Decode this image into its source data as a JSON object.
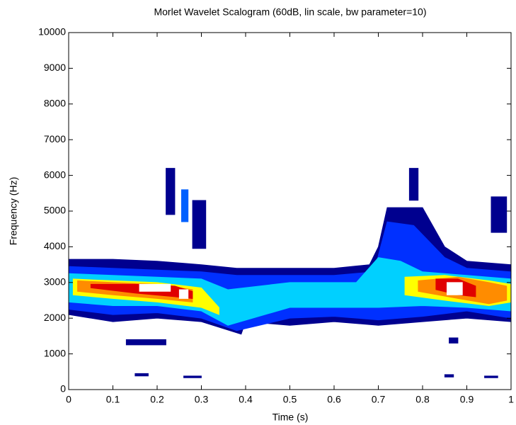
{
  "chart_data": {
    "type": "contour",
    "title": "Morlet Wavelet Scalogram (60dB, lin scale, bw parameter=10)",
    "xlabel": "Time (s)",
    "ylabel": "Frequency (Hz)",
    "xlim": [
      0,
      1
    ],
    "ylim": [
      0,
      10000
    ],
    "xticks": [
      0,
      0.1,
      0.2,
      0.3,
      0.4,
      0.5,
      0.6,
      0.7,
      0.8,
      0.9,
      1
    ],
    "yticks": [
      0,
      1000,
      2000,
      3000,
      4000,
      5000,
      6000,
      7000,
      8000,
      9000,
      10000
    ],
    "regions": [
      {
        "color": "#00008f",
        "x": [
          0,
          0.1,
          0.2,
          0.3,
          0.38,
          0.4,
          0.5,
          0.6,
          0.68,
          0.7,
          0.72,
          0.8,
          0.85,
          0.9,
          1,
          1,
          0.9,
          0.8,
          0.7,
          0.6,
          0.5,
          0.4,
          0.39,
          0.3,
          0.2,
          0.1,
          0
        ],
        "y": [
          3650,
          3650,
          3600,
          3500,
          3400,
          3400,
          3400,
          3400,
          3500,
          4000,
          5100,
          5100,
          4000,
          3600,
          3500,
          1900,
          2000,
          1900,
          1800,
          1900,
          1800,
          1900,
          1550,
          1900,
          2000,
          1900,
          2100
        ]
      },
      {
        "color": "#0030ff",
        "x": [
          0,
          0.1,
          0.2,
          0.3,
          0.38,
          0.5,
          0.6,
          0.69,
          0.72,
          0.78,
          0.85,
          0.9,
          1,
          1,
          0.9,
          0.8,
          0.7,
          0.6,
          0.5,
          0.38,
          0.3,
          0.2,
          0.1,
          0
        ],
        "y": [
          3450,
          3400,
          3350,
          3300,
          3200,
          3200,
          3200,
          3300,
          4700,
          4600,
          3700,
          3400,
          3300,
          2000,
          2200,
          2050,
          1950,
          2050,
          2000,
          1650,
          2000,
          2150,
          2100,
          2250
        ]
      },
      {
        "color": "#00d0ff",
        "x": [
          0,
          0.1,
          0.2,
          0.3,
          0.36,
          0.5,
          0.65,
          0.7,
          0.75,
          0.8,
          0.9,
          1,
          1,
          0.9,
          0.8,
          0.7,
          0.6,
          0.5,
          0.36,
          0.3,
          0.2,
          0.1,
          0
        ],
        "y": [
          3250,
          3200,
          3150,
          3100,
          2800,
          3000,
          3000,
          3700,
          3600,
          3300,
          3200,
          3100,
          2200,
          2300,
          2350,
          2300,
          2300,
          2300,
          1800,
          2200,
          2350,
          2350,
          2450
        ]
      },
      {
        "color": "#ffff00",
        "x": [
          0.01,
          0.1,
          0.2,
          0.3,
          0.34,
          0.34,
          0.3,
          0.2,
          0.1,
          0.01
        ],
        "y": [
          3100,
          3050,
          3000,
          2850,
          2300,
          2100,
          2300,
          2450,
          2550,
          2650
        ]
      },
      {
        "color": "#ffff00",
        "x": [
          0.76,
          0.85,
          0.95,
          1,
          1,
          0.95,
          0.85,
          0.76
        ],
        "y": [
          3150,
          3200,
          3050,
          2950,
          2450,
          2350,
          2500,
          2650
        ]
      },
      {
        "color": "#ff8c00",
        "x": [
          0.02,
          0.1,
          0.2,
          0.28,
          0.28,
          0.2,
          0.1,
          0.02
        ],
        "y": [
          3050,
          3000,
          2950,
          2800,
          2450,
          2550,
          2650,
          2750
        ]
      },
      {
        "color": "#ff8c00",
        "x": [
          0.79,
          0.88,
          0.95,
          0.99,
          0.99,
          0.95,
          0.88,
          0.79
        ],
        "y": [
          3050,
          3150,
          3000,
          2900,
          2500,
          2400,
          2550,
          2750
        ]
      },
      {
        "color": "#e00000",
        "x": [
          0.05,
          0.15,
          0.24,
          0.28,
          0.28,
          0.24,
          0.15,
          0.05
        ],
        "y": [
          2950,
          2950,
          2900,
          2750,
          2550,
          2600,
          2700,
          2850
        ]
      },
      {
        "color": "#e00000",
        "x": [
          0.83,
          0.88,
          0.92,
          0.92,
          0.88,
          0.83
        ],
        "y": [
          3100,
          3100,
          2900,
          2600,
          2650,
          2800
        ]
      },
      {
        "color": "#ffffff",
        "x": [
          0.16,
          0.23,
          0.23,
          0.16
        ],
        "y": [
          2950,
          2950,
          2750,
          2750
        ]
      },
      {
        "color": "#ffffff",
        "x": [
          0.855,
          0.89,
          0.89,
          0.855
        ],
        "y": [
          3000,
          3000,
          2650,
          2650
        ]
      },
      {
        "color": "#ffffff",
        "x": [
          0.25,
          0.27,
          0.27,
          0.25
        ],
        "y": [
          2800,
          2800,
          2550,
          2550
        ]
      },
      {
        "color": "#00008f",
        "x": [
          0.22,
          0.24,
          0.24,
          0.22
        ],
        "y": [
          6200,
          6200,
          4900,
          4900
        ]
      },
      {
        "color": "#00008f",
        "x": [
          0.28,
          0.31,
          0.31,
          0.28
        ],
        "y": [
          5300,
          5300,
          3950,
          3950
        ]
      },
      {
        "color": "#0060ff",
        "x": [
          0.255,
          0.27,
          0.27,
          0.255
        ],
        "y": [
          5600,
          5600,
          4700,
          4700
        ]
      },
      {
        "color": "#00008f",
        "x": [
          0.77,
          0.79,
          0.79,
          0.77
        ],
        "y": [
          6200,
          6200,
          5300,
          5300
        ]
      },
      {
        "color": "#00008f",
        "x": [
          0.955,
          0.99,
          0.99,
          0.955
        ],
        "y": [
          5400,
          5400,
          4400,
          4400
        ]
      },
      {
        "color": "#00008f",
        "x": [
          0.13,
          0.22,
          0.22,
          0.13
        ],
        "y": [
          1400,
          1400,
          1250,
          1250
        ]
      },
      {
        "color": "#00008f",
        "x": [
          0.86,
          0.88,
          0.88,
          0.86
        ],
        "y": [
          1450,
          1450,
          1300,
          1300
        ]
      },
      {
        "color": "#00008f",
        "x": [
          0.15,
          0.18,
          0.18,
          0.15
        ],
        "y": [
          450,
          450,
          380,
          380
        ]
      },
      {
        "color": "#00008f",
        "x": [
          0.85,
          0.87,
          0.87,
          0.85
        ],
        "y": [
          420,
          420,
          350,
          350
        ]
      },
      {
        "color": "#00008f",
        "x": [
          0.26,
          0.3,
          0.3,
          0.26
        ],
        "y": [
          380,
          380,
          330,
          330
        ]
      },
      {
        "color": "#00008f",
        "x": [
          0.94,
          0.97,
          0.97,
          0.94
        ],
        "y": [
          380,
          380,
          330,
          330
        ]
      }
    ]
  }
}
